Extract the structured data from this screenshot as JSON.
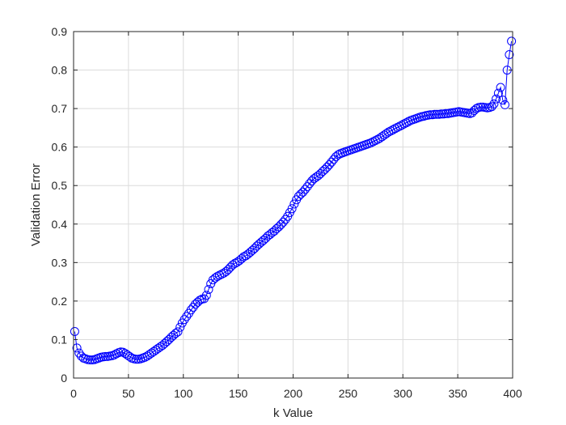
{
  "chart_data": {
    "type": "scatter",
    "xlabel": "k Value",
    "ylabel": "Validation Error",
    "xlim": [
      0,
      400
    ],
    "ylim": [
      0,
      0.9
    ],
    "xticks": [
      "0",
      "50",
      "100",
      "150",
      "200",
      "250",
      "300",
      "350",
      "400"
    ],
    "yticks": [
      "0",
      "0.1",
      "0.2",
      "0.3",
      "0.4",
      "0.5",
      "0.6",
      "0.7",
      "0.8",
      "0.9"
    ],
    "grid": true,
    "marker": "circle",
    "connected_line": true,
    "series": [
      {
        "color": "#0000ff",
        "x": [
          1,
          3,
          5,
          7,
          9,
          11,
          13,
          15,
          17,
          19,
          21,
          23,
          25,
          27,
          29,
          31,
          33,
          35,
          37,
          39,
          41,
          43,
          45,
          47,
          49,
          51,
          53,
          55,
          57,
          59,
          61,
          63,
          65,
          67,
          69,
          71,
          73,
          75,
          77,
          79,
          81,
          83,
          85,
          87,
          89,
          91,
          93,
          95,
          97,
          99,
          101,
          103,
          105,
          107,
          109,
          111,
          113,
          115,
          117,
          119,
          121,
          123,
          125,
          127,
          129,
          131,
          133,
          135,
          137,
          139,
          141,
          143,
          145,
          147,
          149,
          151,
          153,
          155,
          157,
          159,
          161,
          163,
          165,
          167,
          169,
          171,
          173,
          175,
          177,
          179,
          181,
          183,
          185,
          187,
          189,
          191,
          193,
          195,
          197,
          199,
          201,
          203,
          205,
          207,
          209,
          211,
          213,
          215,
          217,
          219,
          221,
          223,
          225,
          227,
          229,
          231,
          233,
          235,
          237,
          239,
          241,
          243,
          245,
          247,
          249,
          251,
          253,
          255,
          257,
          259,
          261,
          263,
          265,
          267,
          269,
          271,
          273,
          275,
          277,
          279,
          281,
          283,
          285,
          287,
          289,
          291,
          293,
          295,
          297,
          299,
          301,
          303,
          305,
          307,
          309,
          311,
          313,
          315,
          317,
          319,
          321,
          323,
          325,
          327,
          329,
          331,
          333,
          335,
          337,
          339,
          341,
          343,
          345,
          347,
          349,
          351,
          353,
          355,
          357,
          359,
          361,
          363,
          365,
          367,
          369,
          371,
          373,
          375,
          377,
          379,
          381,
          383,
          385,
          387,
          389,
          391,
          393,
          395,
          397,
          399
        ],
        "y": [
          0.121,
          0.078,
          0.065,
          0.057,
          0.052,
          0.05,
          0.048,
          0.047,
          0.047,
          0.048,
          0.05,
          0.052,
          0.054,
          0.055,
          0.056,
          0.056,
          0.057,
          0.058,
          0.06,
          0.063,
          0.066,
          0.068,
          0.067,
          0.064,
          0.06,
          0.056,
          0.052,
          0.05,
          0.049,
          0.049,
          0.05,
          0.052,
          0.054,
          0.057,
          0.061,
          0.065,
          0.069,
          0.073,
          0.077,
          0.081,
          0.085,
          0.09,
          0.095,
          0.1,
          0.106,
          0.111,
          0.116,
          0.12,
          0.132,
          0.143,
          0.152,
          0.16,
          0.168,
          0.177,
          0.184,
          0.192,
          0.197,
          0.202,
          0.205,
          0.206,
          0.215,
          0.23,
          0.245,
          0.255,
          0.26,
          0.264,
          0.267,
          0.27,
          0.273,
          0.277,
          0.282,
          0.288,
          0.294,
          0.298,
          0.301,
          0.305,
          0.31,
          0.315,
          0.318,
          0.322,
          0.327,
          0.332,
          0.337,
          0.343,
          0.348,
          0.353,
          0.358,
          0.363,
          0.369,
          0.373,
          0.378,
          0.382,
          0.388,
          0.393,
          0.399,
          0.405,
          0.412,
          0.42,
          0.43,
          0.44,
          0.452,
          0.463,
          0.472,
          0.478,
          0.483,
          0.49,
          0.497,
          0.505,
          0.512,
          0.518,
          0.522,
          0.526,
          0.531,
          0.537,
          0.542,
          0.548,
          0.554,
          0.561,
          0.568,
          0.575,
          0.58,
          0.583,
          0.585,
          0.587,
          0.589,
          0.591,
          0.593,
          0.595,
          0.597,
          0.599,
          0.601,
          0.603,
          0.605,
          0.607,
          0.609,
          0.611,
          0.614,
          0.617,
          0.62,
          0.623,
          0.627,
          0.631,
          0.635,
          0.639,
          0.642,
          0.645,
          0.648,
          0.651,
          0.654,
          0.657,
          0.66,
          0.663,
          0.666,
          0.669,
          0.671,
          0.673,
          0.675,
          0.677,
          0.679,
          0.68,
          0.682,
          0.683,
          0.684,
          0.684,
          0.685,
          0.685,
          0.685,
          0.686,
          0.686,
          0.687,
          0.687,
          0.688,
          0.689,
          0.69,
          0.691,
          0.692,
          0.691,
          0.69,
          0.689,
          0.688,
          0.687,
          0.689,
          0.695,
          0.7,
          0.703,
          0.704,
          0.704,
          0.703,
          0.702,
          0.703,
          0.705,
          0.712,
          0.725,
          0.74,
          0.755,
          0.722,
          0.71,
          0.8,
          0.84,
          0.875
        ]
      }
    ]
  }
}
